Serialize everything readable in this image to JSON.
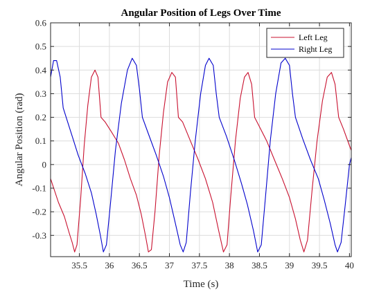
{
  "chart_data": {
    "type": "line",
    "title": "Angular Position of Legs Over Time",
    "xlabel": "Time (s)",
    "ylabel": "Angular Position (rad)",
    "xlim": [
      35.02,
      40.03
    ],
    "ylim": [
      -0.39,
      0.6
    ],
    "xticks": [
      35.5,
      36,
      36.5,
      37,
      37.5,
      38,
      38.5,
      39,
      39.5,
      40
    ],
    "xtick_labels": [
      "35.5",
      "36",
      "36.5",
      "37",
      "37.5",
      "38",
      "38.5",
      "39",
      "39.5",
      "40"
    ],
    "yticks": [
      -0.3,
      -0.2,
      -0.1,
      0,
      0.1,
      0.2,
      0.3,
      0.4,
      0.5,
      0.6
    ],
    "ytick_labels": [
      "-0.3",
      "-0.2",
      "-0.1",
      "0",
      "0.1",
      "0.2",
      "0.3",
      "0.4",
      "0.5",
      "0.6"
    ],
    "grid": true,
    "legend_position": "top-right",
    "series": [
      {
        "name": "Left Leg",
        "color": "#c8102e",
        "points": [
          [
            35.02,
            -0.06
          ],
          [
            35.15,
            -0.16
          ],
          [
            35.25,
            -0.22
          ],
          [
            35.33,
            -0.29
          ],
          [
            35.38,
            -0.33
          ],
          [
            35.42,
            -0.37
          ],
          [
            35.46,
            -0.34
          ],
          [
            35.52,
            -0.15
          ],
          [
            35.58,
            0.08
          ],
          [
            35.64,
            0.25
          ],
          [
            35.7,
            0.37
          ],
          [
            35.76,
            0.4
          ],
          [
            35.81,
            0.37
          ],
          [
            35.86,
            0.2
          ],
          [
            35.93,
            0.18
          ],
          [
            36.03,
            0.14
          ],
          [
            36.15,
            0.09
          ],
          [
            36.25,
            0.02
          ],
          [
            36.35,
            -0.06
          ],
          [
            36.45,
            -0.13
          ],
          [
            36.53,
            -0.21
          ],
          [
            36.6,
            -0.3
          ],
          [
            36.65,
            -0.37
          ],
          [
            36.7,
            -0.36
          ],
          [
            36.76,
            -0.2
          ],
          [
            36.83,
            0.04
          ],
          [
            36.9,
            0.22
          ],
          [
            36.97,
            0.35
          ],
          [
            37.04,
            0.39
          ],
          [
            37.1,
            0.37
          ],
          [
            37.15,
            0.2
          ],
          [
            37.22,
            0.18
          ],
          [
            37.35,
            0.1
          ],
          [
            37.48,
            0.02
          ],
          [
            37.6,
            -0.06
          ],
          [
            37.72,
            -0.16
          ],
          [
            37.82,
            -0.28
          ],
          [
            37.9,
            -0.37
          ],
          [
            37.96,
            -0.34
          ],
          [
            38.02,
            -0.14
          ],
          [
            38.1,
            0.1
          ],
          [
            38.18,
            0.28
          ],
          [
            38.25,
            0.37
          ],
          [
            38.31,
            0.39
          ],
          [
            38.37,
            0.34
          ],
          [
            38.42,
            0.2
          ],
          [
            38.5,
            0.16
          ],
          [
            38.62,
            0.1
          ],
          [
            38.75,
            0.02
          ],
          [
            38.88,
            -0.06
          ],
          [
            39.0,
            -0.14
          ],
          [
            39.1,
            -0.23
          ],
          [
            39.18,
            -0.32
          ],
          [
            39.24,
            -0.37
          ],
          [
            39.3,
            -0.32
          ],
          [
            39.38,
            -0.1
          ],
          [
            39.46,
            0.1
          ],
          [
            39.55,
            0.27
          ],
          [
            39.63,
            0.37
          ],
          [
            39.7,
            0.39
          ],
          [
            39.76,
            0.34
          ],
          [
            39.82,
            0.2
          ],
          [
            39.9,
            0.15
          ],
          [
            40.0,
            0.08
          ],
          [
            40.03,
            0.06
          ]
        ]
      },
      {
        "name": "Right Leg",
        "color": "#0000cc",
        "points": [
          [
            35.02,
            0.37
          ],
          [
            35.07,
            0.44
          ],
          [
            35.12,
            0.44
          ],
          [
            35.18,
            0.37
          ],
          [
            35.23,
            0.24
          ],
          [
            35.28,
            0.2
          ],
          [
            35.38,
            0.12
          ],
          [
            35.48,
            0.04
          ],
          [
            35.6,
            -0.04
          ],
          [
            35.7,
            -0.12
          ],
          [
            35.78,
            -0.21
          ],
          [
            35.85,
            -0.3
          ],
          [
            35.9,
            -0.37
          ],
          [
            35.95,
            -0.34
          ],
          [
            36.02,
            -0.16
          ],
          [
            36.1,
            0.06
          ],
          [
            36.2,
            0.26
          ],
          [
            36.3,
            0.4
          ],
          [
            36.38,
            0.45
          ],
          [
            36.45,
            0.42
          ],
          [
            36.5,
            0.32
          ],
          [
            36.55,
            0.2
          ],
          [
            36.65,
            0.13
          ],
          [
            36.78,
            0.04
          ],
          [
            36.9,
            -0.05
          ],
          [
            37.0,
            -0.14
          ],
          [
            37.1,
            -0.25
          ],
          [
            37.18,
            -0.34
          ],
          [
            37.23,
            -0.37
          ],
          [
            37.28,
            -0.33
          ],
          [
            37.35,
            -0.12
          ],
          [
            37.43,
            0.1
          ],
          [
            37.52,
            0.3
          ],
          [
            37.6,
            0.42
          ],
          [
            37.66,
            0.45
          ],
          [
            37.73,
            0.42
          ],
          [
            37.78,
            0.3
          ],
          [
            37.83,
            0.2
          ],
          [
            37.95,
            0.12
          ],
          [
            38.08,
            0.02
          ],
          [
            38.2,
            -0.08
          ],
          [
            38.3,
            -0.17
          ],
          [
            38.4,
            -0.28
          ],
          [
            38.47,
            -0.37
          ],
          [
            38.53,
            -0.34
          ],
          [
            38.6,
            -0.14
          ],
          [
            38.68,
            0.1
          ],
          [
            38.77,
            0.3
          ],
          [
            38.86,
            0.43
          ],
          [
            38.93,
            0.45
          ],
          [
            39.0,
            0.42
          ],
          [
            39.05,
            0.3
          ],
          [
            39.1,
            0.2
          ],
          [
            39.22,
            0.11
          ],
          [
            39.35,
            0.02
          ],
          [
            39.48,
            -0.06
          ],
          [
            39.58,
            -0.15
          ],
          [
            39.68,
            -0.25
          ],
          [
            39.76,
            -0.34
          ],
          [
            39.8,
            -0.37
          ],
          [
            39.86,
            -0.33
          ],
          [
            39.93,
            -0.17
          ],
          [
            40.0,
            0.0
          ],
          [
            40.03,
            0.03
          ]
        ]
      }
    ]
  }
}
